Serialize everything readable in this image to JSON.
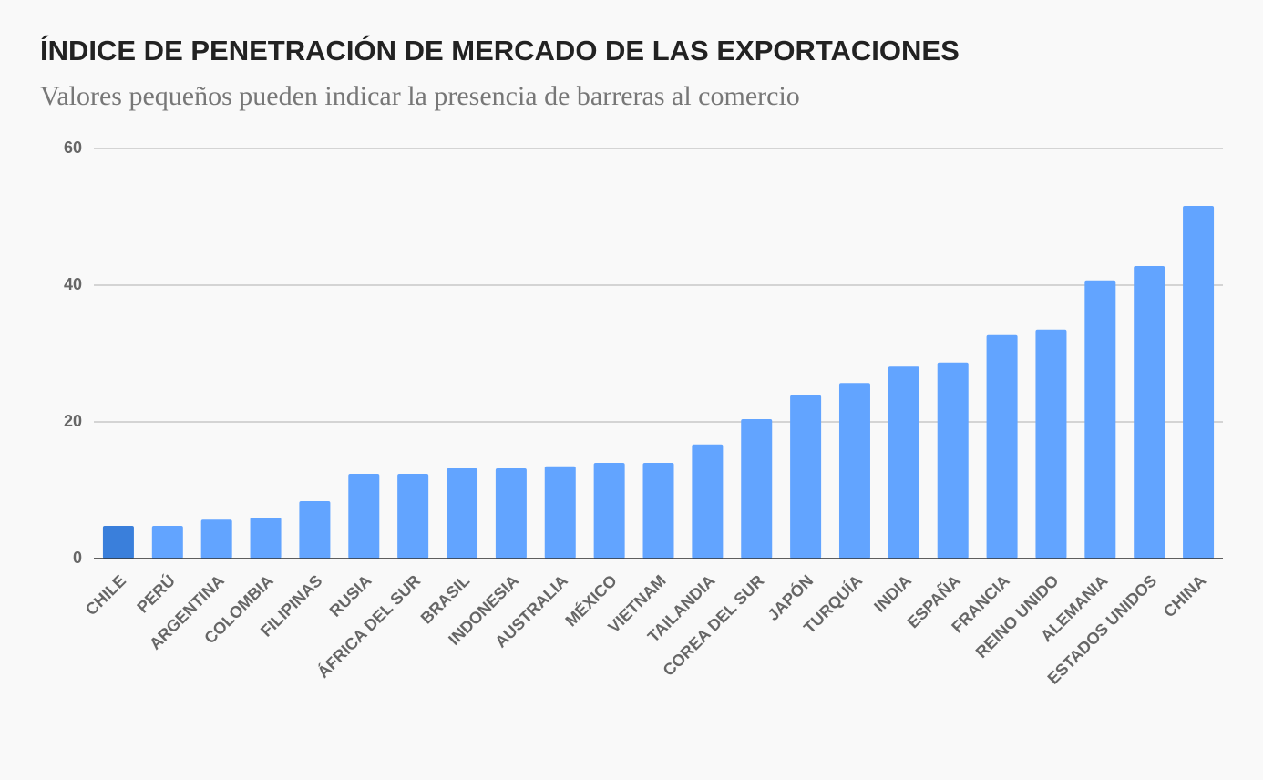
{
  "chart_data": {
    "type": "bar",
    "title": "ÍNDICE DE PENETRACIÓN DE MERCADO DE LAS EXPORTACIONES",
    "subtitle": "Valores pequeños pueden indicar la presencia de barreras al comercio",
    "categories": [
      "CHILE",
      "PERÚ",
      "ARGENTINA",
      "COLOMBIA",
      "FILIPINAS",
      "RUSIA",
      "ÁFRICA DEL SUR",
      "BRASIL",
      "INDONESIA",
      "AUSTRALIA",
      "MÉXICO",
      "VIETNAM",
      "TAILANDIA",
      "COREA DEL SUR",
      "JAPÓN",
      "TURQUÍA",
      "INDIA",
      "ESPAÑA",
      "FRANCIA",
      "REINO UNIDO",
      "ALEMANIA",
      "ESTADOS UNIDOS",
      "CHINA"
    ],
    "values": [
      4.8,
      4.8,
      5.7,
      6.0,
      8.4,
      12.4,
      12.4,
      13.2,
      13.2,
      13.5,
      14.0,
      14.0,
      16.7,
      20.4,
      23.9,
      25.7,
      28.1,
      28.7,
      32.7,
      33.5,
      40.7,
      42.8,
      51.6
    ],
    "colors": [
      "#3a7fdb",
      "#62a4ff",
      "#62a4ff",
      "#62a4ff",
      "#62a4ff",
      "#62a4ff",
      "#62a4ff",
      "#62a4ff",
      "#62a4ff",
      "#62a4ff",
      "#62a4ff",
      "#62a4ff",
      "#62a4ff",
      "#62a4ff",
      "#62a4ff",
      "#62a4ff",
      "#62a4ff",
      "#62a4ff",
      "#62a4ff",
      "#62a4ff",
      "#62a4ff",
      "#62a4ff",
      "#62a4ff"
    ],
    "ylim": [
      0,
      60
    ],
    "yticks": [
      0,
      20,
      40,
      60
    ],
    "grid": true
  }
}
